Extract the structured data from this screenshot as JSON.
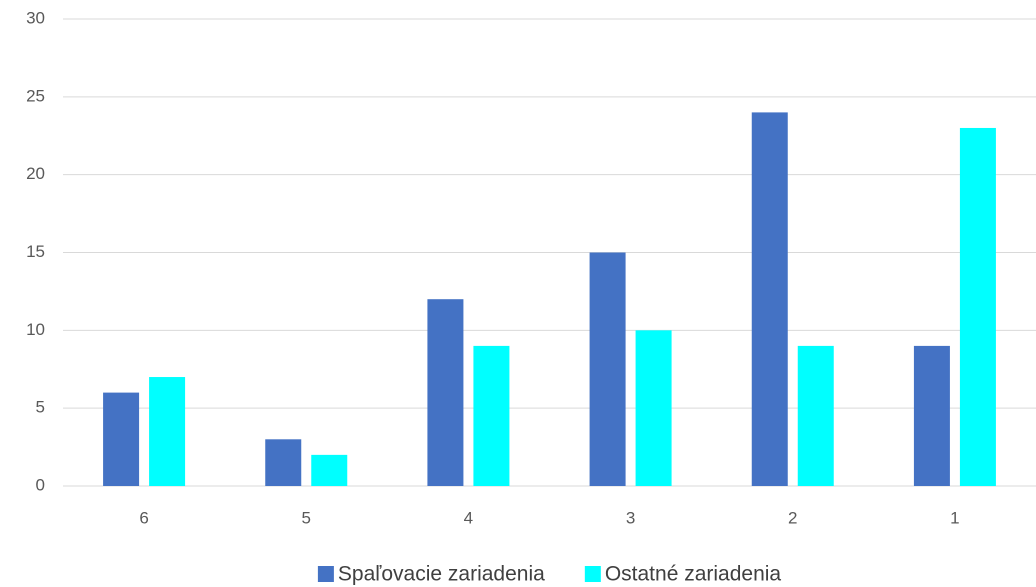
{
  "chart_data": {
    "type": "bar",
    "categories": [
      "6",
      "5",
      "4",
      "3",
      "2",
      "1"
    ],
    "series": [
      {
        "name": "Spaľovacie zariadenia",
        "color": "#4472c4",
        "values": [
          6,
          3,
          12,
          15,
          24,
          9
        ]
      },
      {
        "name": "Ostatné zariadenia",
        "color": "#00ffff",
        "values": [
          7,
          2,
          9,
          10,
          9,
          23
        ]
      }
    ],
    "ylim": [
      0,
      30
    ],
    "yticks": [
      0,
      5,
      10,
      15,
      20,
      25,
      30
    ],
    "grid": true,
    "legend": "bottom"
  }
}
